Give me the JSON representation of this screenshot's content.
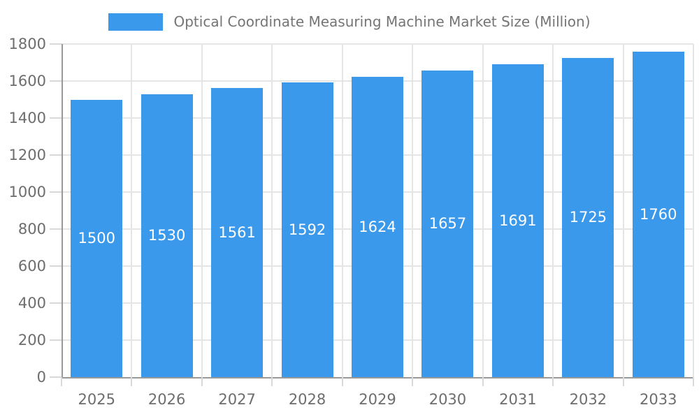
{
  "chart_data": {
    "type": "bar",
    "title": "Optical Coordinate Measuring Machine Market Size (Million)",
    "categories": [
      "2025",
      "2026",
      "2027",
      "2028",
      "2029",
      "2030",
      "2031",
      "2032",
      "2033"
    ],
    "values": [
      1500,
      1530,
      1561,
      1592,
      1624,
      1657,
      1691,
      1725,
      1760
    ],
    "yticks": [
      0,
      200,
      400,
      600,
      800,
      1000,
      1200,
      1400,
      1600,
      1800
    ],
    "ylim": [
      0,
      1800
    ],
    "xlabel": "",
    "ylabel": "",
    "grid": true,
    "legend_position": "top",
    "colors": {
      "bar": "#3B99EC",
      "bar_label": "#ffffff",
      "grid": "#e5e5e5",
      "axis_line": "#999999",
      "tick_mark": "#d9d9d9",
      "axis_text": "#6d6d6d",
      "legend_text": "#757575"
    }
  }
}
